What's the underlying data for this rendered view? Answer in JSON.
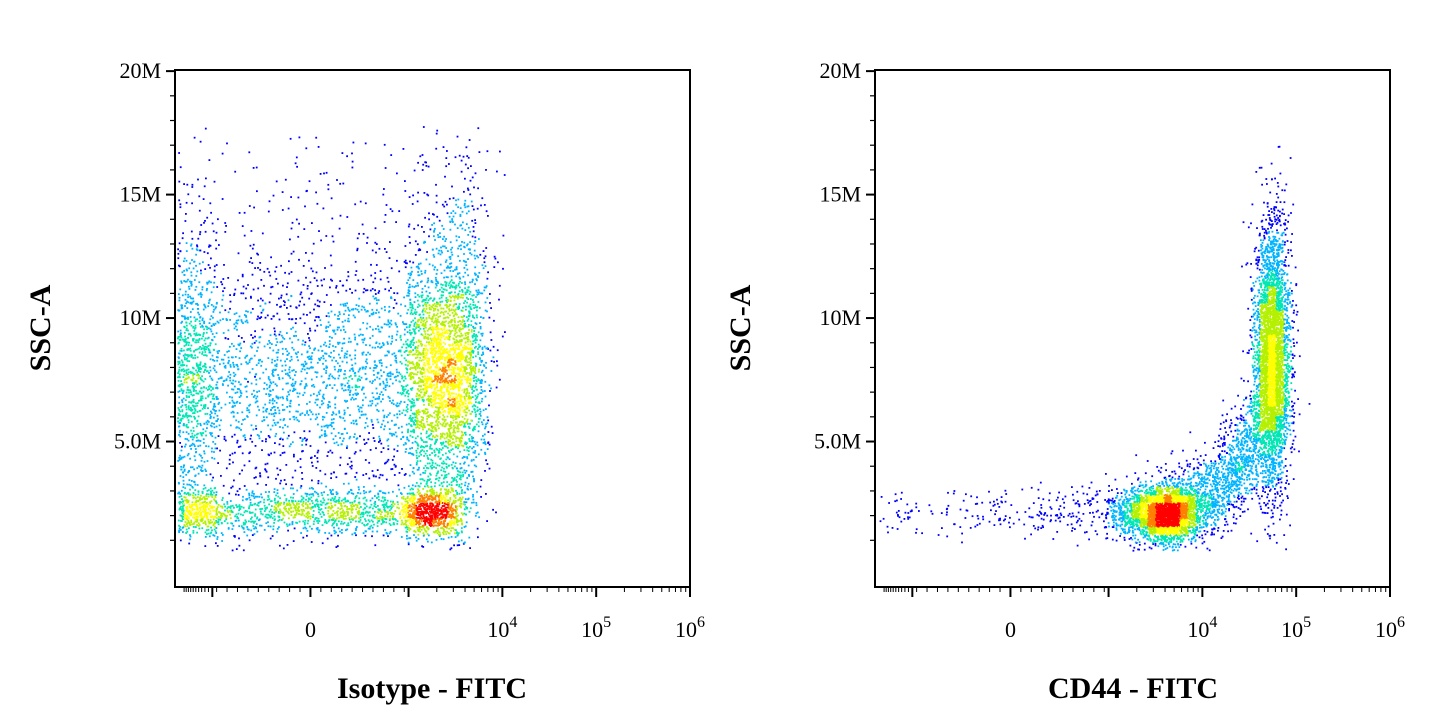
{
  "chart_data": [
    {
      "type": "scatter",
      "style": "density-colored dot plot",
      "title": "",
      "xlabel": "Isotype - FITC",
      "ylabel": "SSC-A",
      "x_scale": "biexponential",
      "x_ticks": [
        "0",
        "10^4",
        "10^5",
        "10^6"
      ],
      "y_ticks": [
        "5.0M",
        "10M",
        "15M",
        "20M"
      ],
      "ylim": [
        0,
        20000000
      ],
      "grid": false,
      "density_colors": [
        "#0000ff",
        "#00b4ff",
        "#00e6b4",
        "#b4f000",
        "#ffff00",
        "#ff8000",
        "#ff0000"
      ],
      "populations": [
        {
          "name": "",
          "x_center": 800,
          "x_spread": 2200,
          "y_center": 7500000,
          "y_spread": 2200000,
          "points": 4200
        },
        {
          "name": "",
          "x_center": 400,
          "x_spread": 1500,
          "y_center": 2200000,
          "y_spread": 500000,
          "points": 2200
        },
        {
          "name": "",
          "x_center": 700,
          "x_spread": 3000,
          "y_center": 9000000,
          "y_spread": 4000000,
          "points": 2400
        }
      ]
    },
    {
      "type": "scatter",
      "style": "density-colored dot plot",
      "title": "",
      "xlabel": "CD44 - FITC",
      "ylabel": "SSC-A",
      "x_scale": "biexponential",
      "x_ticks": [
        "0",
        "10^4",
        "10^5",
        "10^6"
      ],
      "y_ticks": [
        "5.0M",
        "10M",
        "15M",
        "20M"
      ],
      "ylim": [
        0,
        20000000
      ],
      "grid": false,
      "density_colors": [
        "#0000ff",
        "#00b4ff",
        "#00e6b4",
        "#b4f000",
        "#ffff00",
        "#ff8000",
        "#ff0000"
      ],
      "populations": [
        {
          "name": "",
          "x_center": 55000,
          "x_spread": 15000,
          "y_center": 8500000,
          "y_spread": 2600000,
          "points": 3600
        },
        {
          "name": "",
          "x_center": 3500,
          "x_spread": 2000,
          "y_center": 2100000,
          "y_spread": 500000,
          "points": 2600
        },
        {
          "name": "",
          "x_center": 25000,
          "x_spread": 20000,
          "y_center": 4000000,
          "y_spread": 1500000,
          "points": 2200
        }
      ]
    }
  ]
}
